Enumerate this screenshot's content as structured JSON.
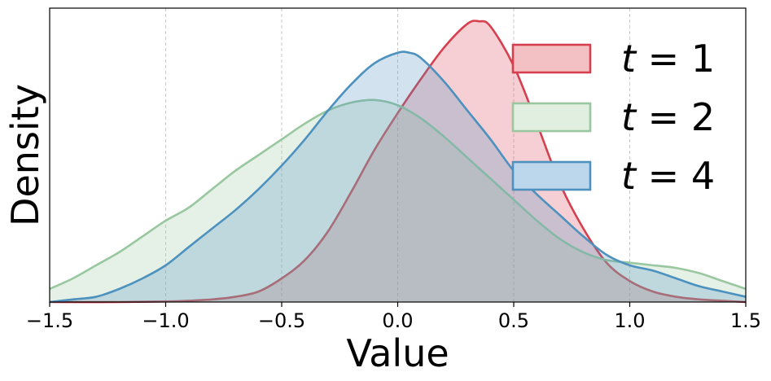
{
  "chart_data": {
    "type": "area",
    "title": "",
    "xlabel": "Value",
    "ylabel": "Density",
    "xlim": [
      -1.5,
      1.5
    ],
    "ylim": [
      0,
      1.12
    ],
    "xticks": [
      -1.5,
      -1.0,
      -0.5,
      0.0,
      0.5,
      1.0,
      1.5
    ],
    "xtick_labels": [
      "−1.5",
      "−1.0",
      "−0.5",
      "0.0",
      "0.5",
      "1.0",
      "1.5"
    ],
    "yticks_shown": false,
    "grid": "vertical dashed",
    "legend": "top-right",
    "series": [
      {
        "name": "t = 1",
        "legend_var": "t",
        "legend_eq": " = 1",
        "color": "#d6404e",
        "fill": "#f3c1c4",
        "x": [
          -1.5,
          -1.2,
          -1.0,
          -0.9,
          -0.8,
          -0.7,
          -0.6,
          -0.5,
          -0.4,
          -0.3,
          -0.2,
          -0.1,
          0.0,
          0.1,
          0.2,
          0.3,
          0.35,
          0.4,
          0.5,
          0.6,
          0.7,
          0.8,
          0.9,
          1.0,
          1.1,
          1.2,
          1.3,
          1.4,
          1.5
        ],
        "y": [
          0.0,
          0.0,
          0.002,
          0.005,
          0.01,
          0.02,
          0.04,
          0.09,
          0.16,
          0.27,
          0.42,
          0.58,
          0.72,
          0.85,
          0.97,
          1.06,
          1.07,
          1.05,
          0.9,
          0.68,
          0.45,
          0.28,
          0.15,
          0.08,
          0.04,
          0.02,
          0.01,
          0.005,
          0.0
        ]
      },
      {
        "name": "t = 2",
        "legend_var": "t",
        "legend_eq": " = 2",
        "color": "#99c79f",
        "fill": "#e1efe1",
        "x": [
          -1.5,
          -1.4,
          -1.3,
          -1.2,
          -1.1,
          -1.0,
          -0.9,
          -0.8,
          -0.7,
          -0.6,
          -0.5,
          -0.4,
          -0.3,
          -0.2,
          -0.1,
          0.0,
          0.1,
          0.2,
          0.3,
          0.4,
          0.5,
          0.6,
          0.7,
          0.8,
          0.9,
          1.0,
          1.1,
          1.2,
          1.3,
          1.4,
          1.5
        ],
        "y": [
          0.05,
          0.09,
          0.14,
          0.19,
          0.25,
          0.31,
          0.36,
          0.43,
          0.5,
          0.56,
          0.62,
          0.68,
          0.73,
          0.76,
          0.77,
          0.75,
          0.7,
          0.63,
          0.55,
          0.47,
          0.39,
          0.31,
          0.24,
          0.19,
          0.16,
          0.15,
          0.14,
          0.13,
          0.11,
          0.08,
          0.05
        ]
      },
      {
        "name": "t = 4",
        "legend_var": "t",
        "legend_eq": " = 4",
        "color": "#4d91be",
        "fill": "#bcd7eb",
        "x": [
          -1.5,
          -1.4,
          -1.3,
          -1.2,
          -1.1,
          -1.0,
          -0.9,
          -0.8,
          -0.7,
          -0.6,
          -0.5,
          -0.4,
          -0.3,
          -0.2,
          -0.1,
          0.0,
          0.05,
          0.1,
          0.2,
          0.3,
          0.4,
          0.5,
          0.6,
          0.7,
          0.8,
          0.9,
          1.0,
          1.1,
          1.2,
          1.3,
          1.4,
          1.5
        ],
        "y": [
          0.0,
          0.01,
          0.02,
          0.05,
          0.09,
          0.14,
          0.21,
          0.28,
          0.35,
          0.43,
          0.52,
          0.62,
          0.73,
          0.83,
          0.91,
          0.95,
          0.95,
          0.93,
          0.84,
          0.73,
          0.62,
          0.5,
          0.41,
          0.33,
          0.25,
          0.18,
          0.14,
          0.12,
          0.09,
          0.06,
          0.04,
          0.02
        ]
      }
    ]
  }
}
